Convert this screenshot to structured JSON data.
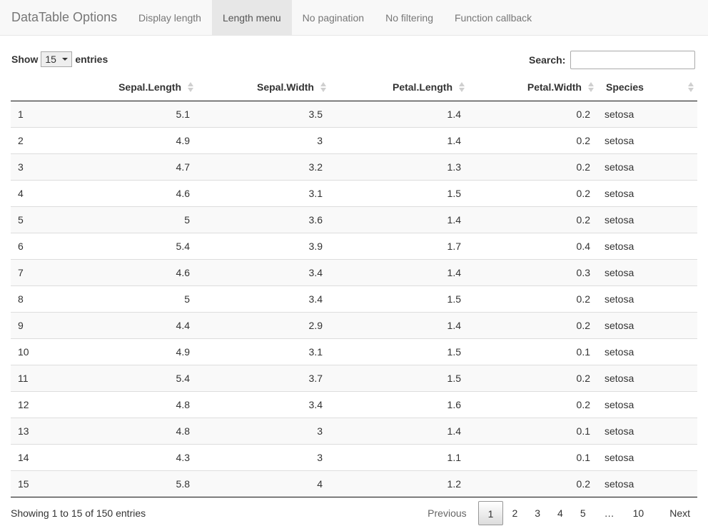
{
  "navbar": {
    "brand": "DataTable Options",
    "tabs": [
      "Display length",
      "Length menu",
      "No pagination",
      "No filtering",
      "Function callback"
    ],
    "active_tab": "Length menu"
  },
  "controls": {
    "show_label": "Show",
    "length_value": "15",
    "entries_label": "entries",
    "search_label": "Search:",
    "search_value": ""
  },
  "table": {
    "columns": [
      "",
      "Sepal.Length",
      "Sepal.Width",
      "Petal.Length",
      "Petal.Width",
      "Species"
    ],
    "rows": [
      [
        "1",
        "5.1",
        "3.5",
        "1.4",
        "0.2",
        "setosa"
      ],
      [
        "2",
        "4.9",
        "3",
        "1.4",
        "0.2",
        "setosa"
      ],
      [
        "3",
        "4.7",
        "3.2",
        "1.3",
        "0.2",
        "setosa"
      ],
      [
        "4",
        "4.6",
        "3.1",
        "1.5",
        "0.2",
        "setosa"
      ],
      [
        "5",
        "5",
        "3.6",
        "1.4",
        "0.2",
        "setosa"
      ],
      [
        "6",
        "5.4",
        "3.9",
        "1.7",
        "0.4",
        "setosa"
      ],
      [
        "7",
        "4.6",
        "3.4",
        "1.4",
        "0.3",
        "setosa"
      ],
      [
        "8",
        "5",
        "3.4",
        "1.5",
        "0.2",
        "setosa"
      ],
      [
        "9",
        "4.4",
        "2.9",
        "1.4",
        "0.2",
        "setosa"
      ],
      [
        "10",
        "4.9",
        "3.1",
        "1.5",
        "0.1",
        "setosa"
      ],
      [
        "11",
        "5.4",
        "3.7",
        "1.5",
        "0.2",
        "setosa"
      ],
      [
        "12",
        "4.8",
        "3.4",
        "1.6",
        "0.2",
        "setosa"
      ],
      [
        "13",
        "4.8",
        "3",
        "1.4",
        "0.1",
        "setosa"
      ],
      [
        "14",
        "4.3",
        "3",
        "1.1",
        "0.1",
        "setosa"
      ],
      [
        "15",
        "5.8",
        "4",
        "1.2",
        "0.2",
        "setosa"
      ]
    ]
  },
  "footer": {
    "info": "Showing 1 to 15 of 150 entries",
    "previous": "Previous",
    "pages": [
      "1",
      "2",
      "3",
      "4",
      "5",
      "…",
      "10"
    ],
    "current_page": "1",
    "next": "Next"
  }
}
